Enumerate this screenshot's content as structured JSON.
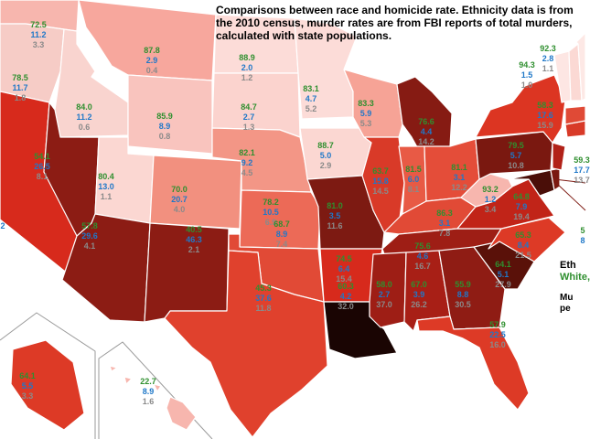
{
  "caption": "Comparisons between race and homicide rate. Ethnicity data is from the 2010 census, murder rates are from FBI reports of total murders, calculated with state populations.",
  "legend_fragment": {
    "line1": "Eth",
    "line2": "White, ",
    "line3": "Mu",
    "line4": "pe"
  },
  "colors": {
    "white": "#2f8f2f",
    "hispanic": "#1f78c8",
    "murder": "#8a8a8a"
  },
  "states": [
    {
      "id": "WA",
      "w": "72.5",
      "h": "11.2",
      "m": "3.3"
    },
    {
      "id": "OR",
      "w": "78.5",
      "h": "11.7",
      "m": "1.8"
    },
    {
      "id": "ID",
      "w": "84.0",
      "h": "11.2",
      "m": "0.6"
    },
    {
      "id": "MT",
      "w": "87.8",
      "h": "2.9",
      "m": "0.4"
    },
    {
      "id": "ND",
      "w": "88.9",
      "h": "2.0",
      "m": "1.2"
    },
    {
      "id": "MN",
      "w": "83.1",
      "h": "4.7",
      "m": "5.2"
    },
    {
      "id": "WY",
      "w": "85.9",
      "h": "8.9",
      "m": "0.8"
    },
    {
      "id": "SD",
      "w": "84.7",
      "h": "2.7",
      "m": "1.3"
    },
    {
      "id": "WI",
      "w": "83.3",
      "h": "5.9",
      "m": "5.3"
    },
    {
      "id": "MI",
      "w": "76.6",
      "h": "4.4",
      "m": "14.2"
    },
    {
      "id": "NV",
      "w": "54.1",
      "h": "26.5",
      "m": "8.1"
    },
    {
      "id": "UT",
      "w": "80.4",
      "h": "13.0",
      "m": "1.1"
    },
    {
      "id": "NE",
      "w": "82.1",
      "h": "9.2",
      "m": "4.5"
    },
    {
      "id": "IA",
      "w": "88.7",
      "h": "5.0",
      "m": "2.9"
    },
    {
      "id": "IL",
      "w": "63.7",
      "h": "15.8",
      "m": "14.5"
    },
    {
      "id": "IN",
      "w": "81.5",
      "h": "6.0",
      "m": "8.1"
    },
    {
      "id": "OH",
      "w": "81.1",
      "h": "3.1",
      "m": "12.2"
    },
    {
      "id": "PA",
      "w": "79.5",
      "h": "5.7",
      "m": "10.8"
    },
    {
      "id": "NY",
      "w": "58.3",
      "h": "17.6",
      "m": "15.9"
    },
    {
      "id": "CO",
      "w": "70.0",
      "h": "20.7",
      "m": "4.0"
    },
    {
      "id": "KS",
      "w": "78.2",
      "h": "10.5",
      "m": "6.9"
    },
    {
      "id": "MO",
      "w": "81.0",
      "h": "3.5",
      "m": "11.6"
    },
    {
      "id": "KY",
      "w": "86.3",
      "h": "3.1",
      "m": "7.8"
    },
    {
      "id": "WV",
      "w": "93.2",
      "h": "1.2",
      "m": "3.4"
    },
    {
      "id": "VA",
      "w": "64.8",
      "h": "7.9",
      "m": "19.4"
    },
    {
      "id": "AZ",
      "w": "57.8",
      "h": "29.6",
      "m": "4.1"
    },
    {
      "id": "NM",
      "w": "40.5",
      "h": "46.3",
      "m": "2.1"
    },
    {
      "id": "OK",
      "w": "68.7",
      "h": "8.9",
      "m": "7.4"
    },
    {
      "id": "AR",
      "w": "74.5",
      "h": "6.4",
      "m": "15.4"
    },
    {
      "id": "TN",
      "w": "75.6",
      "h": "4.6",
      "m": "16.7"
    },
    {
      "id": "NC",
      "w": "65.3",
      "h": "8.4",
      "m": "21.5"
    },
    {
      "id": "SC",
      "w": "64.1",
      "h": "5.1",
      "m": "27.9"
    },
    {
      "id": "MS",
      "w": "58.0",
      "h": "2.7",
      "m": "37.0"
    },
    {
      "id": "AL",
      "w": "67.0",
      "h": "3.9",
      "m": "26.2"
    },
    {
      "id": "GA",
      "w": "55.9",
      "h": "8.8",
      "m": "30.5"
    },
    {
      "id": "TX",
      "w": "45.3",
      "h": "37.6",
      "m": "11.8"
    },
    {
      "id": "LA",
      "w": "60.3",
      "h": "4.2",
      "m": "32.0"
    },
    {
      "id": "FL",
      "w": "57.9",
      "h": "22.5",
      "m": "16.0"
    },
    {
      "id": "AK",
      "w": "64.1",
      "h": "5.5",
      "m": "3.3"
    },
    {
      "id": "HI",
      "w": "22.7",
      "h": "8.9",
      "m": "1.6"
    },
    {
      "id": "ME",
      "w": "92.3",
      "h": "2.8",
      "m": "1.1"
    },
    {
      "id": "VT",
      "w": "94.3",
      "h": "1.5",
      "m": "1.0"
    }
  ],
  "edge_cut": {
    "NE_small": {
      "w": "59.3",
      "h": "17.7",
      "m": "13.7"
    },
    "MD": {
      "w": "5",
      "h": "8"
    },
    "CA": {
      "m": "2"
    }
  }
}
